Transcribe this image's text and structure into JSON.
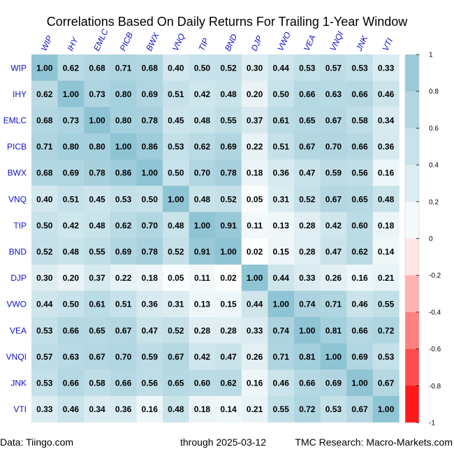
{
  "chart_data": {
    "type": "heatmap",
    "title": "Correlations Based On Daily Returns For Trailing 1-Year Window",
    "columns": [
      "WIP",
      "IHY",
      "EMLC",
      "PICB",
      "BWX",
      "VNQ",
      "TIP",
      "BND",
      "DJP",
      "VWO",
      "VEA",
      "VNQI",
      "JNK",
      "VTI"
    ],
    "rows": [
      "WIP",
      "IHY",
      "EMLC",
      "PICB",
      "BWX",
      "VNQ",
      "TIP",
      "BND",
      "DJP",
      "VWO",
      "VEA",
      "VNQI",
      "JNK",
      "VTI"
    ],
    "values": [
      [
        1.0,
        0.62,
        0.68,
        0.71,
        0.68,
        0.4,
        0.5,
        0.52,
        0.3,
        0.44,
        0.53,
        0.57,
        0.53,
        0.33
      ],
      [
        0.62,
        1.0,
        0.73,
        0.8,
        0.69,
        0.51,
        0.42,
        0.48,
        0.2,
        0.5,
        0.66,
        0.63,
        0.66,
        0.46
      ],
      [
        0.68,
        0.73,
        1.0,
        0.8,
        0.78,
        0.45,
        0.48,
        0.55,
        0.37,
        0.61,
        0.65,
        0.67,
        0.58,
        0.34
      ],
      [
        0.71,
        0.8,
        0.8,
        1.0,
        0.86,
        0.53,
        0.62,
        0.69,
        0.22,
        0.51,
        0.67,
        0.7,
        0.66,
        0.36
      ],
      [
        0.68,
        0.69,
        0.78,
        0.86,
        1.0,
        0.5,
        0.7,
        0.78,
        0.18,
        0.36,
        0.47,
        0.59,
        0.56,
        0.16
      ],
      [
        0.4,
        0.51,
        0.45,
        0.53,
        0.5,
        1.0,
        0.48,
        0.52,
        0.05,
        0.31,
        0.52,
        0.67,
        0.65,
        0.48
      ],
      [
        0.5,
        0.42,
        0.48,
        0.62,
        0.7,
        0.48,
        1.0,
        0.91,
        0.11,
        0.13,
        0.28,
        0.42,
        0.6,
        0.18
      ],
      [
        0.52,
        0.48,
        0.55,
        0.69,
        0.78,
        0.52,
        0.91,
        1.0,
        0.02,
        0.15,
        0.28,
        0.47,
        0.62,
        0.14
      ],
      [
        0.3,
        0.2,
        0.37,
        0.22,
        0.18,
        0.05,
        0.11,
        0.02,
        1.0,
        0.44,
        0.33,
        0.26,
        0.16,
        0.21
      ],
      [
        0.44,
        0.5,
        0.61,
        0.51,
        0.36,
        0.31,
        0.13,
        0.15,
        0.44,
        1.0,
        0.74,
        0.71,
        0.46,
        0.55
      ],
      [
        0.53,
        0.66,
        0.65,
        0.67,
        0.47,
        0.52,
        0.28,
        0.28,
        0.33,
        0.74,
        1.0,
        0.81,
        0.66,
        0.72
      ],
      [
        0.57,
        0.63,
        0.67,
        0.7,
        0.59,
        0.67,
        0.42,
        0.47,
        0.26,
        0.71,
        0.81,
        1.0,
        0.69,
        0.53
      ],
      [
        0.53,
        0.66,
        0.58,
        0.66,
        0.56,
        0.65,
        0.6,
        0.62,
        0.16,
        0.46,
        0.66,
        0.69,
        1.0,
        0.67
      ],
      [
        0.33,
        0.46,
        0.34,
        0.36,
        0.16,
        0.48,
        0.18,
        0.14,
        0.21,
        0.55,
        0.72,
        0.53,
        0.67,
        1.0
      ]
    ],
    "colorscale": {
      "range": [
        -1,
        1
      ],
      "ticks": [
        1,
        0.8,
        0.6,
        0.4,
        0.2,
        0,
        -0.2,
        -0.4,
        -0.6,
        -0.8,
        -1
      ],
      "positive_color": "#8fc4d4",
      "negative_color": "#ff0000",
      "neutral_color": "#ffffff"
    }
  },
  "footer": {
    "source": "Data: Tiingo.com",
    "date": "through 2025-03-12",
    "credit": "TMC Research: Macro-Markets.com"
  }
}
